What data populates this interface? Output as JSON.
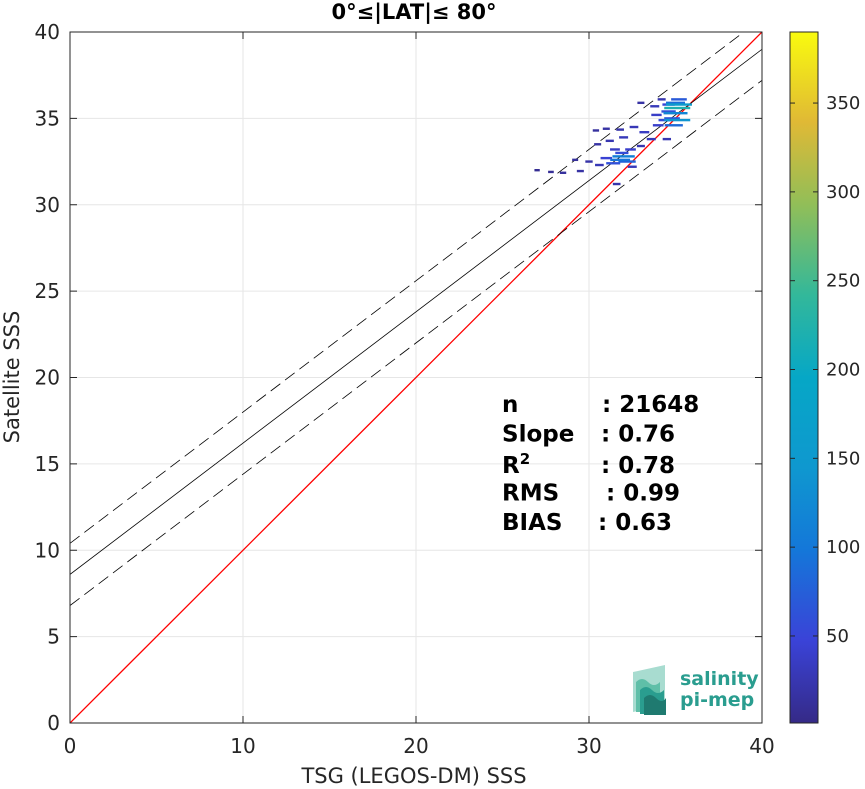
{
  "chart_data": {
    "type": "scatter",
    "title": "0°≤|LAT|≤ 80°",
    "xlabel": "TSG (LEGOS-DM) SSS",
    "ylabel": "Satellite SSS",
    "xlim": [
      0,
      40
    ],
    "ylim": [
      0,
      40
    ],
    "xticks": [
      "0",
      "10",
      "20",
      "30",
      "40"
    ],
    "yticks": [
      "0",
      "5",
      "10",
      "15",
      "20",
      "25",
      "30",
      "35",
      "40"
    ],
    "grid": true,
    "colorbar": {
      "range": [
        1,
        390
      ],
      "ticks": [
        "50",
        "100",
        "150",
        "200",
        "250",
        "300",
        "350"
      ],
      "colormap": "parula"
    },
    "lines": [
      {
        "role": "identity",
        "color": "#ff0000",
        "intercept": 0,
        "slope": 1
      },
      {
        "role": "fit",
        "color": "#000000",
        "intercept": 8.6,
        "slope": 0.76
      },
      {
        "role": "fit-upper",
        "color": "#000000",
        "style": "dashed",
        "intercept": 10.4,
        "slope": 0.76
      },
      {
        "role": "fit-lower",
        "color": "#000000",
        "style": "dashed",
        "intercept": 6.8,
        "slope": 0.76
      }
    ],
    "density_points": [
      {
        "x": 27.0,
        "y": 32.0,
        "count": 8
      },
      {
        "x": 27.8,
        "y": 31.9,
        "count": 10
      },
      {
        "x": 28.5,
        "y": 31.85,
        "count": 14
      },
      {
        "x": 29.5,
        "y": 31.95,
        "count": 18
      },
      {
        "x": 29.2,
        "y": 32.6,
        "count": 12
      },
      {
        "x": 30.0,
        "y": 32.5,
        "count": 20
      },
      {
        "x": 30.6,
        "y": 32.3,
        "count": 28
      },
      {
        "x": 31.0,
        "y": 32.7,
        "count": 45
      },
      {
        "x": 31.4,
        "y": 32.4,
        "count": 60
      },
      {
        "x": 31.8,
        "y": 32.6,
        "count": 95
      },
      {
        "x": 32.0,
        "y": 32.8,
        "count": 110
      },
      {
        "x": 32.2,
        "y": 32.5,
        "count": 80
      },
      {
        "x": 31.9,
        "y": 33.0,
        "count": 55
      },
      {
        "x": 31.5,
        "y": 33.2,
        "count": 35
      },
      {
        "x": 32.4,
        "y": 33.2,
        "count": 40
      },
      {
        "x": 31.6,
        "y": 31.2,
        "count": 22
      },
      {
        "x": 32.5,
        "y": 32.2,
        "count": 30
      },
      {
        "x": 30.5,
        "y": 33.5,
        "count": 18
      },
      {
        "x": 31.2,
        "y": 33.7,
        "count": 25
      },
      {
        "x": 32.0,
        "y": 33.9,
        "count": 30
      },
      {
        "x": 30.4,
        "y": 34.3,
        "count": 14
      },
      {
        "x": 31.0,
        "y": 34.4,
        "count": 18
      },
      {
        "x": 31.8,
        "y": 34.35,
        "count": 22
      },
      {
        "x": 32.6,
        "y": 34.5,
        "count": 28
      },
      {
        "x": 33.2,
        "y": 34.2,
        "count": 35
      },
      {
        "x": 33.6,
        "y": 33.8,
        "count": 30
      },
      {
        "x": 33.0,
        "y": 33.4,
        "count": 24
      },
      {
        "x": 34.0,
        "y": 34.6,
        "count": 40
      },
      {
        "x": 34.4,
        "y": 34.9,
        "count": 55
      },
      {
        "x": 34.8,
        "y": 35.0,
        "count": 70
      },
      {
        "x": 33.9,
        "y": 35.2,
        "count": 38
      },
      {
        "x": 34.6,
        "y": 35.4,
        "count": 62
      },
      {
        "x": 35.0,
        "y": 35.3,
        "count": 120
      },
      {
        "x": 35.1,
        "y": 35.6,
        "count": 220
      },
      {
        "x": 35.2,
        "y": 35.8,
        "count": 160
      },
      {
        "x": 35.0,
        "y": 35.9,
        "count": 90
      },
      {
        "x": 34.6,
        "y": 35.8,
        "count": 50
      },
      {
        "x": 33.8,
        "y": 35.7,
        "count": 30
      },
      {
        "x": 33.0,
        "y": 35.9,
        "count": 18
      },
      {
        "x": 34.2,
        "y": 36.1,
        "count": 24
      },
      {
        "x": 35.2,
        "y": 36.1,
        "count": 70
      },
      {
        "x": 34.9,
        "y": 34.6,
        "count": 85
      },
      {
        "x": 35.1,
        "y": 34.9,
        "count": 140
      },
      {
        "x": 34.5,
        "y": 33.8,
        "count": 26
      }
    ]
  },
  "stats": [
    {
      "label": "n",
      "value": ": 21648"
    },
    {
      "label": "Slope",
      "value": ": 0.76"
    },
    {
      "label": "R",
      "sup": "2",
      "value": ": 0.78"
    },
    {
      "label": "RMS",
      "value": ": 0.99"
    },
    {
      "label": "BIAS",
      "value": ": 0.63"
    }
  ],
  "logo": {
    "line1": "salinity",
    "line2": "pi-mep"
  }
}
